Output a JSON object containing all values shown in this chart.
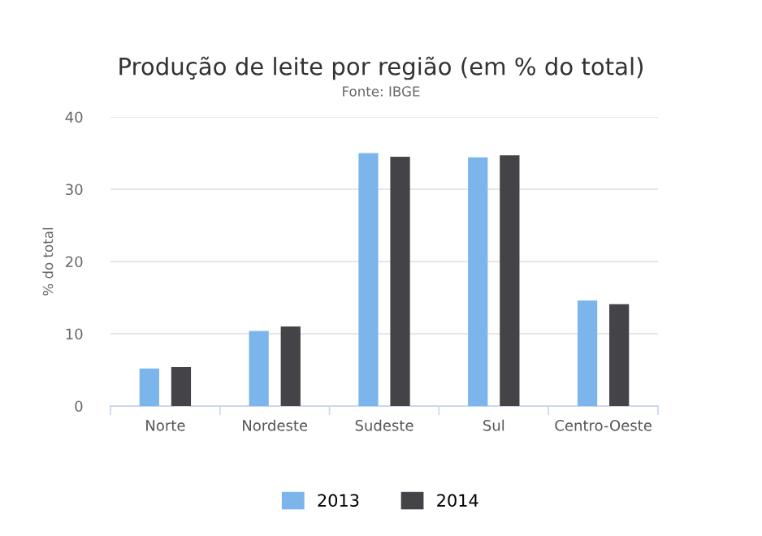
{
  "chart_data": {
    "type": "bar",
    "title": "Produção de leite por região (em % do total)",
    "subtitle": "Fonte: IBGE",
    "ylabel": "% do total",
    "categories": [
      "Norte",
      "Nordeste",
      "Sudeste",
      "Sul",
      "Centro-Oeste"
    ],
    "series": [
      {
        "name": "2013",
        "color": "#7cb5ec",
        "values": [
          5.2,
          10.4,
          35.0,
          34.4,
          14.6
        ]
      },
      {
        "name": "2014",
        "color": "#434348",
        "values": [
          5.4,
          11.0,
          34.5,
          34.7,
          14.1
        ]
      }
    ],
    "ylim": [
      0,
      40
    ],
    "yticks": [
      0,
      10,
      20,
      30,
      40
    ],
    "grid": "y",
    "legend": "bottom"
  }
}
